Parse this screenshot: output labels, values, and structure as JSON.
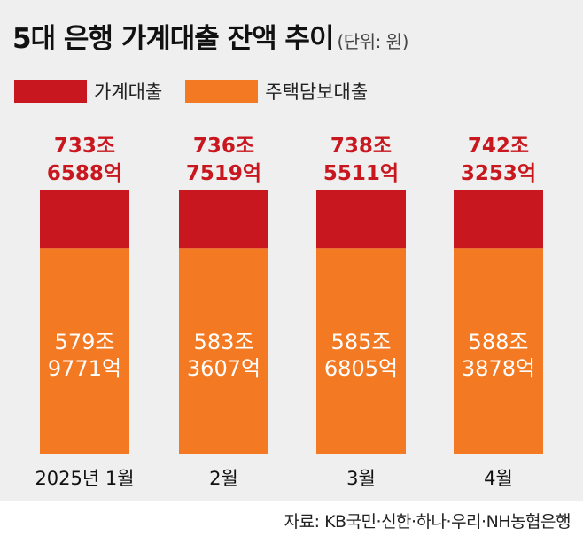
{
  "title": "5대 은행 가계대출 잔액 추이",
  "unit": "(단위: 원)",
  "legend": {
    "household_label": "가계대출",
    "mortgage_label": "주택담보대출"
  },
  "colors": {
    "household": "#c8171e",
    "mortgage": "#f37a22",
    "total_text": "#c8171e",
    "background": "#efefef"
  },
  "source": "자료: KB국민·신한·하나·우리·NH농협은행",
  "chart_data": {
    "type": "bar",
    "stacked": true,
    "title": "5대 은행 가계대출 잔액 추이",
    "unit": "(단위: 원)",
    "categories": [
      "2025년 1월",
      "2월",
      "3월",
      "4월"
    ],
    "series": [
      {
        "name": "주택담보대출",
        "values_in_eok": [
          5799771,
          5833607,
          5856805,
          5883878
        ],
        "labels": [
          [
            "579조",
            "9771억"
          ],
          [
            "583조",
            "3607억"
          ],
          [
            "585조",
            "6805억"
          ],
          [
            "588조",
            "3878억"
          ]
        ]
      },
      {
        "name": "가계대출",
        "values_in_eok": [
          7336588,
          7367519,
          7385511,
          7423253
        ],
        "labels": [
          [
            "733조",
            "6588억"
          ],
          [
            "736조",
            "7519억"
          ],
          [
            "738조",
            "5511억"
          ],
          [
            "742조",
            "3253억"
          ]
        ]
      }
    ],
    "xlabel": "",
    "ylabel": "",
    "ylim": [
      0,
      7423253
    ]
  }
}
